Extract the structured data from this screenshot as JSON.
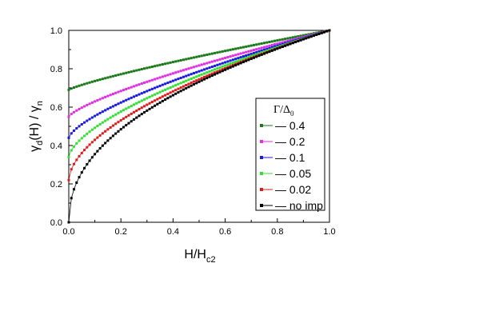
{
  "chart_data": {
    "type": "scatter",
    "title": "",
    "xlabel": {
      "main": "H/H",
      "sub": "c2"
    },
    "ylabel": {
      "part1": "γ",
      "sub1": "d",
      "part2": "(H) / γ",
      "sub2": "n"
    },
    "xlim": [
      0.0,
      1.0
    ],
    "ylim": [
      0.0,
      1.0
    ],
    "xticks": [
      "0.0",
      "0.2",
      "0.4",
      "0.6",
      "0.8",
      "1.0"
    ],
    "yticks": [
      "0.0",
      "0.2",
      "0.4",
      "0.6",
      "0.8",
      "1.0"
    ],
    "grid": false,
    "legend": {
      "placement": "right",
      "title_main": "Γ/Δ",
      "title_sub": "0"
    },
    "series": [
      {
        "name": "0.4",
        "color": "#1a7a1a",
        "y0": 0.69
      },
      {
        "name": "0.2",
        "color": "#e030e0",
        "y0": 0.55
      },
      {
        "name": "0.1",
        "color": "#1a1ae0",
        "y0": 0.44
      },
      {
        "name": "0.05",
        "color": "#33e033",
        "y0": 0.34
      },
      {
        "name": "0.02",
        "color": "#e01a1a",
        "y0": 0.22
      },
      {
        "name": "no imp",
        "color": "#000000",
        "y0": 0.0
      }
    ],
    "x_samples": [
      0.0,
      0.005,
      0.01,
      0.02,
      0.03,
      0.04,
      0.05,
      0.06,
      0.08,
      0.1,
      0.12,
      0.15,
      0.2,
      0.25,
      0.3,
      0.35,
      0.4,
      0.45,
      0.5,
      0.55,
      0.6,
      0.65,
      0.7,
      0.75,
      0.8,
      0.85,
      0.9,
      0.95,
      1.0
    ],
    "note_values_are_y_over_gamma_n": true
  }
}
